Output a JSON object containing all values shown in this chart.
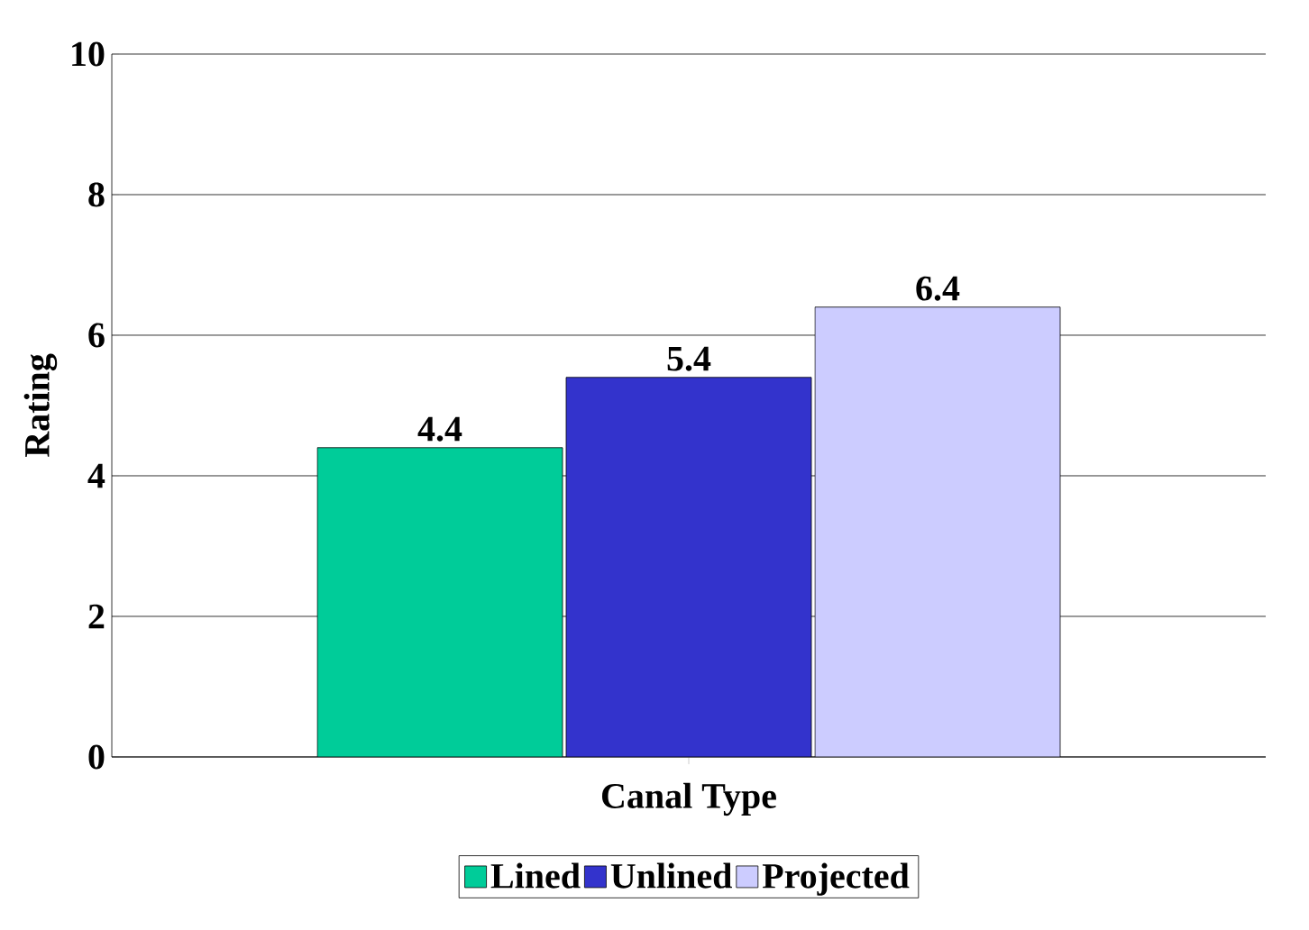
{
  "chart_data": {
    "type": "bar",
    "xlabel": "Canal Type",
    "ylabel": "Rating",
    "categories": [
      null
    ],
    "series": [
      {
        "name": "Lined",
        "color": "#00cc99",
        "values": [
          4.4
        ]
      },
      {
        "name": "Unlined",
        "color": "#3333cc",
        "values": [
          5.4
        ]
      },
      {
        "name": "Projected",
        "color": "#ccccff",
        "values": [
          6.4
        ]
      }
    ],
    "ylim": [
      0,
      10
    ],
    "yticks": [
      0,
      2,
      4,
      6,
      8,
      10
    ],
    "grid": "y",
    "legend": "bottom",
    "data_labels": true
  }
}
